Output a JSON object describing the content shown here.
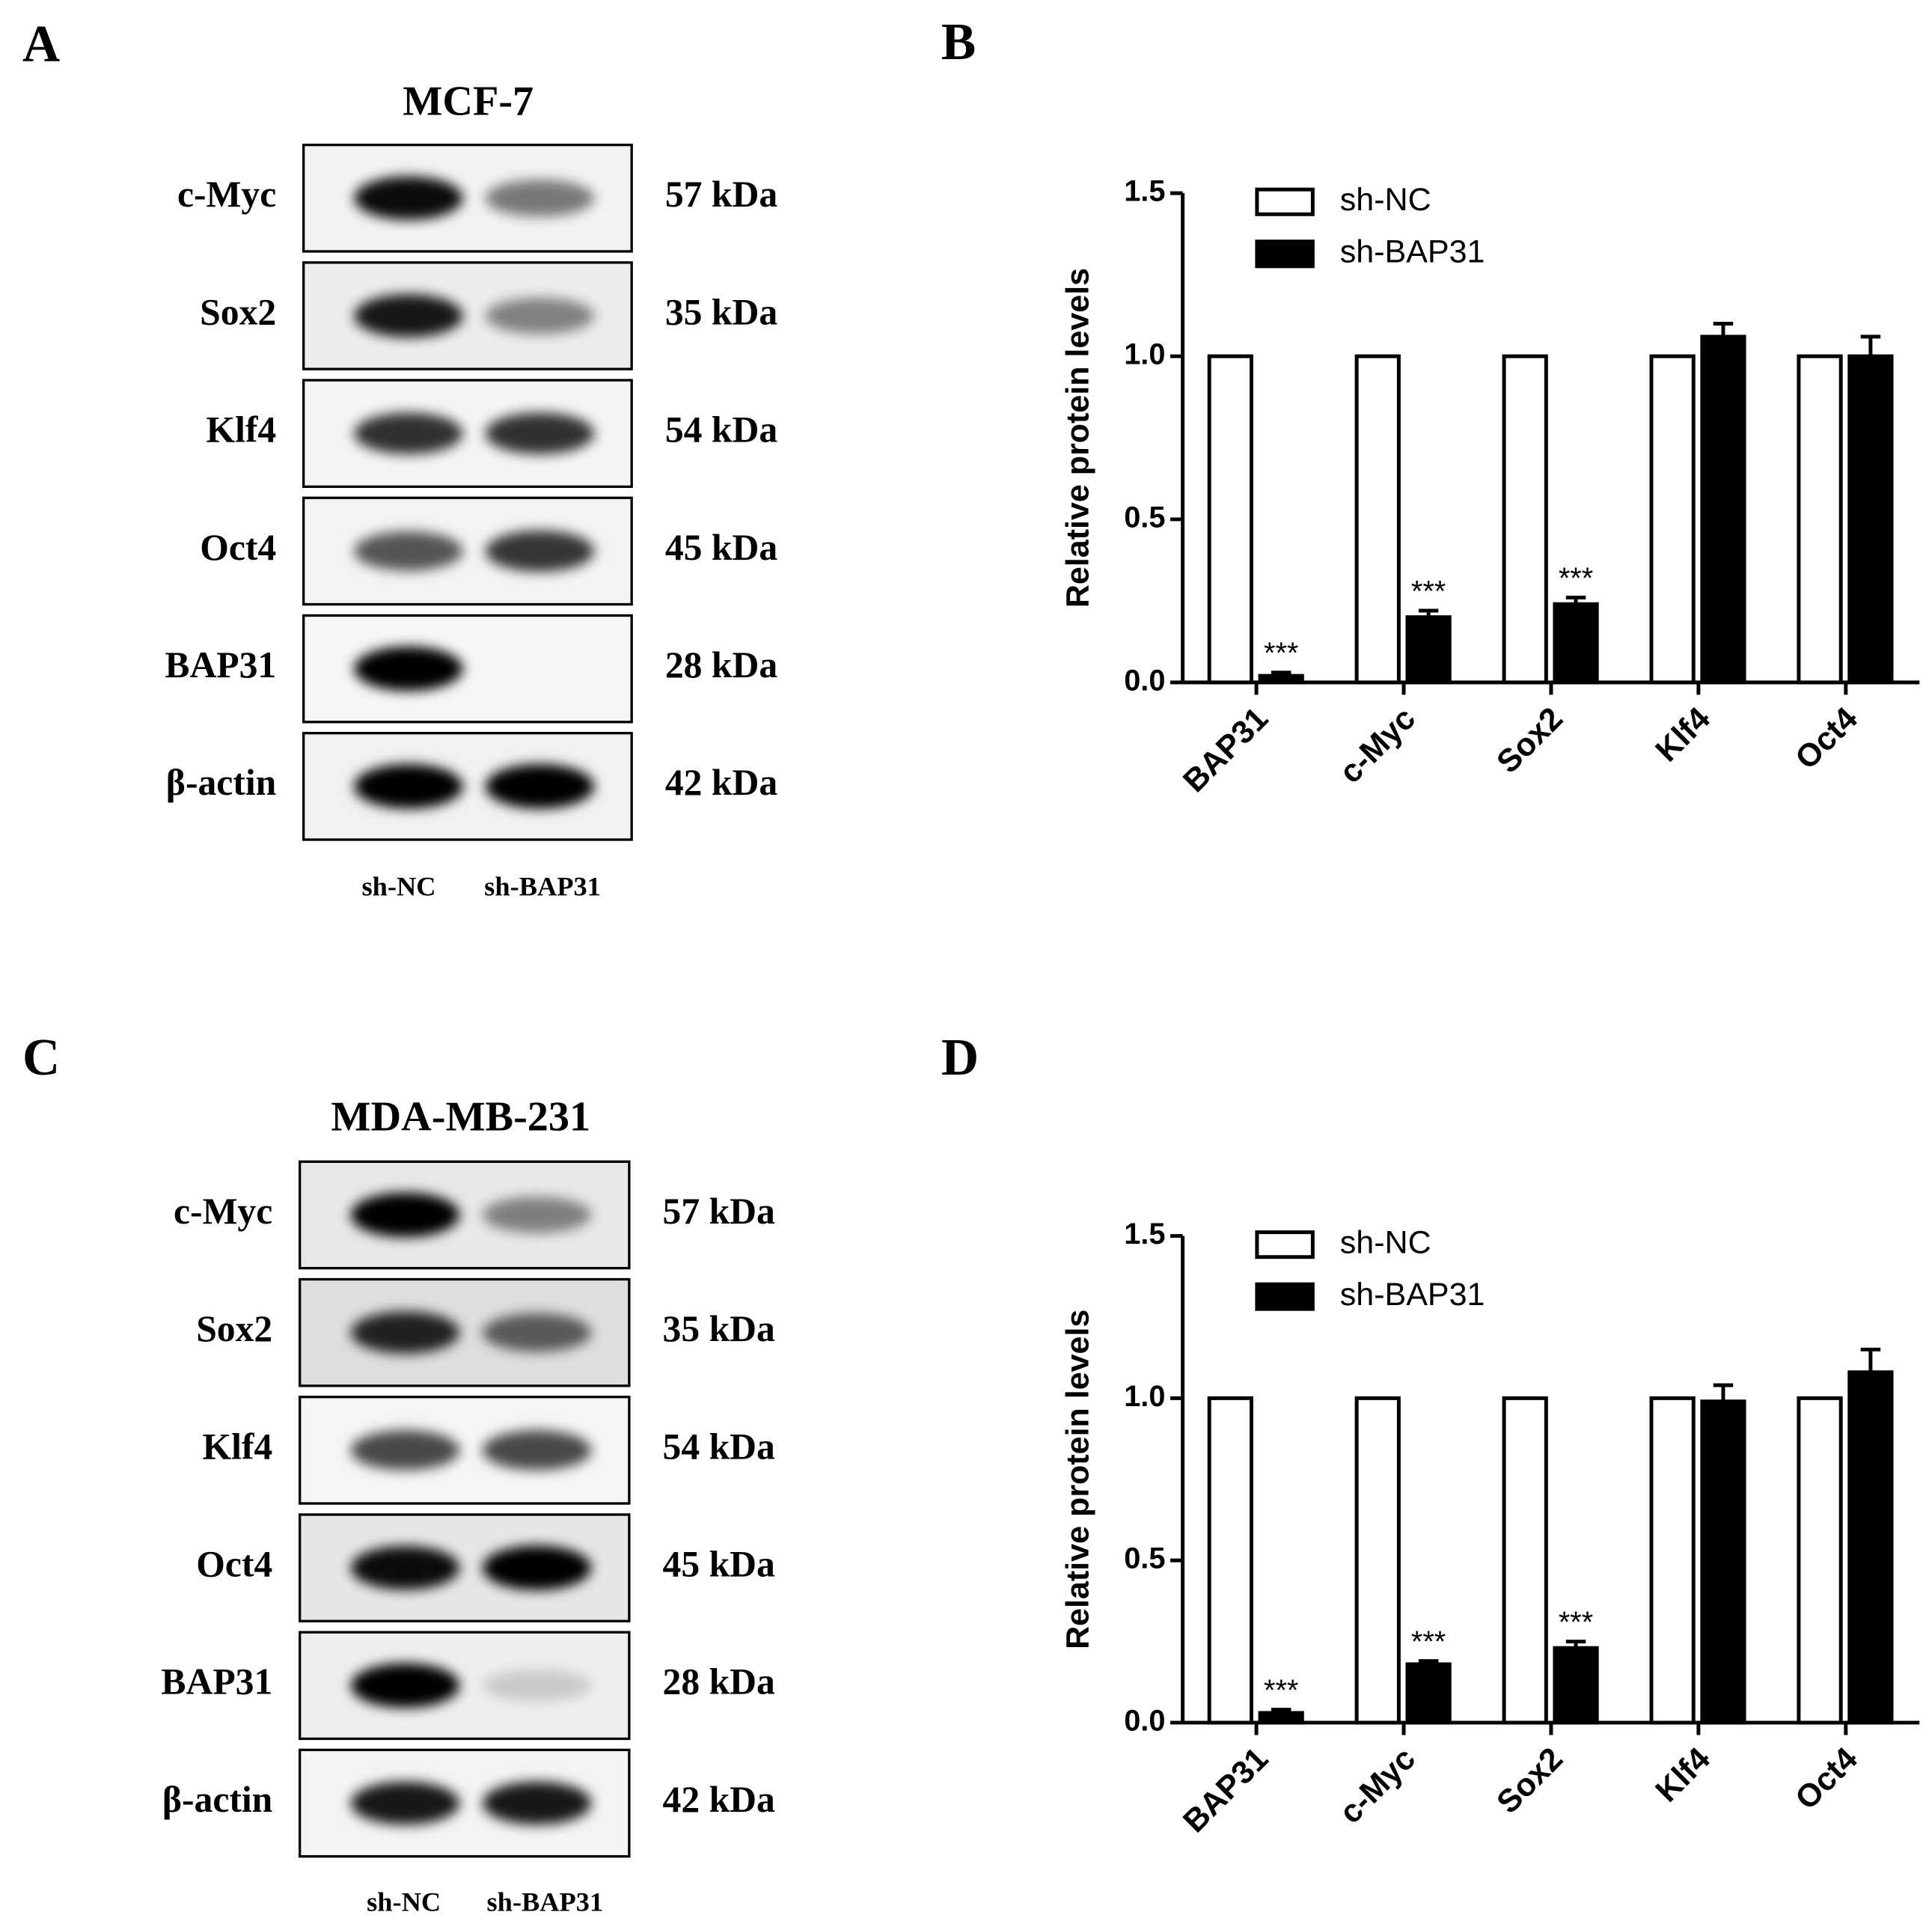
{
  "panel_labels": [
    "A",
    "B",
    "C",
    "D"
  ],
  "blots": [
    {
      "title": "MCF-7",
      "lanes": [
        "sh-NC",
        "sh-BAP31"
      ],
      "rows": [
        {
          "protein": "c-Myc",
          "size": "57 kDa"
        },
        {
          "protein": "Sox2",
          "size": "35 kDa"
        },
        {
          "protein": "Klf4",
          "size": "54 kDa"
        },
        {
          "protein": "Oct4",
          "size": "45 kDa"
        },
        {
          "protein": "BAP31",
          "size": "28 kDa"
        },
        {
          "protein": "β-actin",
          "size": "42 kDa"
        }
      ]
    },
    {
      "title": "MDA-MB-231",
      "lanes": [
        "sh-NC",
        "sh-BAP31"
      ],
      "rows": [
        {
          "protein": "c-Myc",
          "size": "57 kDa"
        },
        {
          "protein": "Sox2",
          "size": "35 kDa"
        },
        {
          "protein": "Klf4",
          "size": "54 kDa"
        },
        {
          "protein": "Oct4",
          "size": "45 kDa"
        },
        {
          "protein": "BAP31",
          "size": "28 kDa"
        },
        {
          "protein": "β-actin",
          "size": "42 kDa"
        }
      ]
    }
  ],
  "chart_data": [
    {
      "type": "bar",
      "y_label": "Relative protein levels",
      "categories": [
        "BAP31",
        "c-Myc",
        "Sox2",
        "Klf4",
        "Oct4"
      ],
      "series": [
        {
          "name": "sh-NC",
          "color": "#ffffff",
          "values": [
            1,
            1,
            1,
            1,
            1
          ]
        },
        {
          "name": "sh-BAP31",
          "color": "#000000",
          "values": [
            0.02,
            0.2,
            0.24,
            1.06,
            1.0
          ],
          "errors": [
            0.01,
            0.02,
            0.02,
            0.04,
            0.06
          ],
          "significance_labels": [
            "***",
            "***",
            "***",
            null,
            null
          ]
        }
      ],
      "ylim": [
        0,
        1.5
      ],
      "yticks": [
        {
          "value": 0,
          "label": "0.0"
        },
        {
          "value": 0.5,
          "label": "0.5"
        },
        {
          "value": 1,
          "label": "1.0"
        },
        {
          "value": 1.5,
          "label": "1.5"
        }
      ],
      "legend": "top-left"
    },
    {
      "type": "bar",
      "y_label": "Relative protein levels",
      "categories": [
        "BAP31",
        "c-Myc",
        "Sox2",
        "Klf4",
        "Oct4"
      ],
      "series": [
        {
          "name": "sh-NC",
          "color": "#ffffff",
          "values": [
            1,
            1,
            1,
            1,
            1
          ]
        },
        {
          "name": "sh-BAP31",
          "color": "#000000",
          "values": [
            0.03,
            0.18,
            0.23,
            0.99,
            1.08
          ],
          "errors": [
            0.01,
            0.01,
            0.02,
            0.05,
            0.07
          ],
          "significance_labels": [
            "***",
            "***",
            "***",
            null,
            null
          ]
        }
      ],
      "ylim": [
        0,
        1.5
      ],
      "yticks": [
        {
          "value": 0,
          "label": "0.0"
        },
        {
          "value": 0.5,
          "label": "0.5"
        },
        {
          "value": 1,
          "label": "1.0"
        },
        {
          "value": 1.5,
          "label": "1.5"
        }
      ],
      "legend": "top-left"
    }
  ]
}
